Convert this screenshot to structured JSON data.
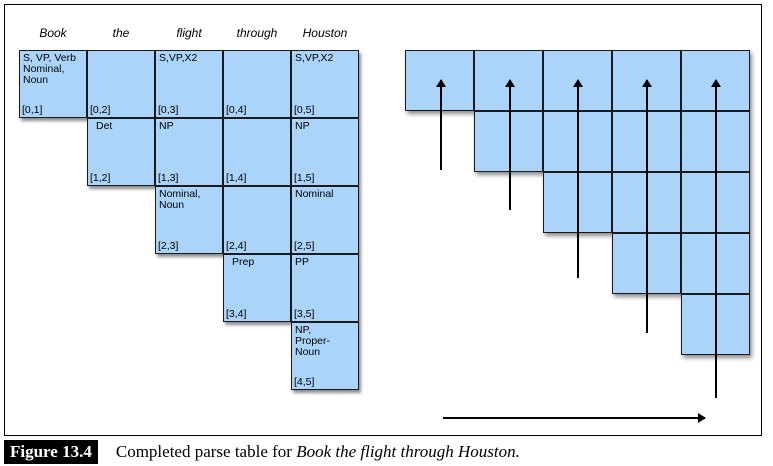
{
  "words": [
    "Book",
    "the",
    "flight",
    "through",
    "Houston"
  ],
  "cells": [
    {
      "row": 0,
      "col": 0,
      "label": "S, VP, Verb\nNominal,\nNoun",
      "span": "[0,1]"
    },
    {
      "row": 0,
      "col": 1,
      "label": "",
      "span": "[0,2]"
    },
    {
      "row": 0,
      "col": 2,
      "label": "S,VP,X2",
      "span": "[0,3]"
    },
    {
      "row": 0,
      "col": 3,
      "label": "",
      "span": "[0,4]"
    },
    {
      "row": 0,
      "col": 4,
      "label": "S,VP,X2",
      "span": "[0,5]"
    },
    {
      "row": 1,
      "col": 1,
      "label": "Det",
      "span": "[1,2]",
      "indent": true
    },
    {
      "row": 1,
      "col": 2,
      "label": "NP",
      "span": "[1,3]"
    },
    {
      "row": 1,
      "col": 3,
      "label": "",
      "span": "[1,4]"
    },
    {
      "row": 1,
      "col": 4,
      "label": "NP",
      "span": "[1,5]"
    },
    {
      "row": 2,
      "col": 2,
      "label": "Nominal,\nNoun",
      "span": "[2,3]"
    },
    {
      "row": 2,
      "col": 3,
      "label": "",
      "span": "[2,4]"
    },
    {
      "row": 2,
      "col": 4,
      "label": "Nominal",
      "span": "[2,5]"
    },
    {
      "row": 3,
      "col": 3,
      "label": "Prep",
      "span": "[3,4]",
      "indent": true
    },
    {
      "row": 3,
      "col": 4,
      "label": "PP",
      "span": "[3,5]"
    },
    {
      "row": 4,
      "col": 4,
      "label": "NP,\nProper-\nNoun",
      "span": "[4,5]"
    }
  ],
  "caption": {
    "label": "Figure 13.4",
    "text_prefix": "Completed parse table for ",
    "text_italic": "Book the flight through Houston."
  }
}
